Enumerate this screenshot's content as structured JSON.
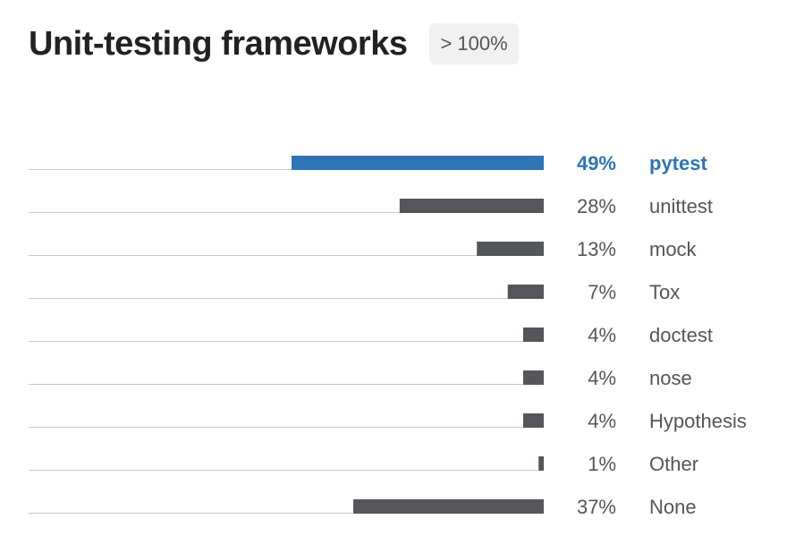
{
  "header": {
    "title": "Unit-testing frameworks",
    "badge": "> 100%"
  },
  "chart_data": {
    "type": "bar",
    "orientation": "horizontal",
    "categories": [
      "pytest",
      "unittest",
      "mock",
      "Tox",
      "doctest",
      "nose",
      "Hypothesis",
      "Other",
      "None"
    ],
    "values": [
      49,
      28,
      13,
      7,
      4,
      4,
      4,
      1,
      37
    ],
    "value_suffix": "%",
    "highlight": "pytest",
    "colors": {
      "highlight": "#2f74b5",
      "bar": "#55565b",
      "track": "#c8c8c8",
      "label": "#555555"
    },
    "xlim": [
      0,
      100
    ],
    "grid": false,
    "legend": "none"
  }
}
